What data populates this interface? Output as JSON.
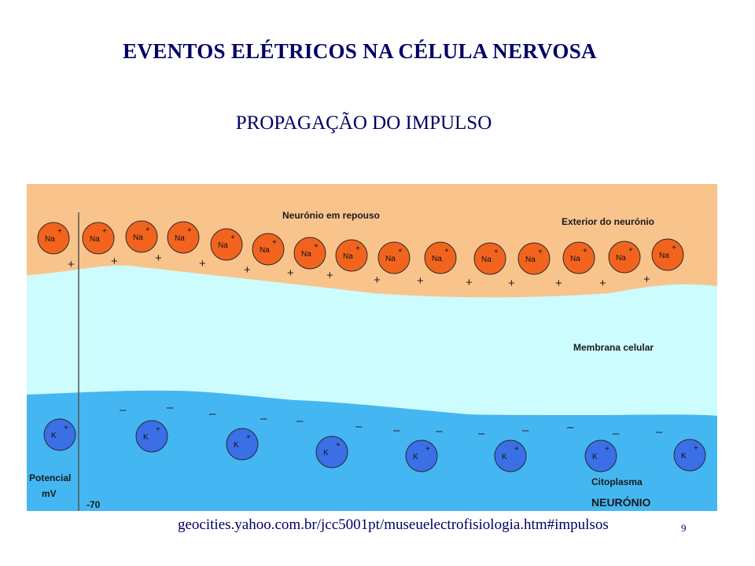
{
  "slide": {
    "title": "EVENTOS ELÉTRICOS NA CÉLULA NERVOSA",
    "subtitle": "PROPAGAÇÃO DO IMPULSO",
    "source": "geocities.yahoo.com.br/jcc5001pt/museuelectrofisiologia.htm#impulsos",
    "page_number": "9"
  },
  "figure": {
    "labels": {
      "top": "Neurónio em repouso",
      "exterior": "Exterior do neurónio",
      "membrane": "Membrana celular",
      "cytoplasm": "Citoplasma",
      "neuron": "NEURÓNIO",
      "potential_line1": "Potencial",
      "potential_line2": "mV",
      "potential_value": "-70"
    },
    "colors": {
      "exterior": "#f9c48c",
      "membrane": "#ccfcfd",
      "cytoplasm": "#44b7f2",
      "sodium_ion": "#f2641e",
      "potassium_ion": "#3a6fe6",
      "neuron_label": "#1a3d8f"
    },
    "ions_outside": {
      "symbol": "Na",
      "charge": "+",
      "count": 15
    },
    "ions_inside": {
      "symbol": "K",
      "charge": "+",
      "count": 8
    },
    "outer_charge": "+",
    "inner_charge": "–"
  }
}
